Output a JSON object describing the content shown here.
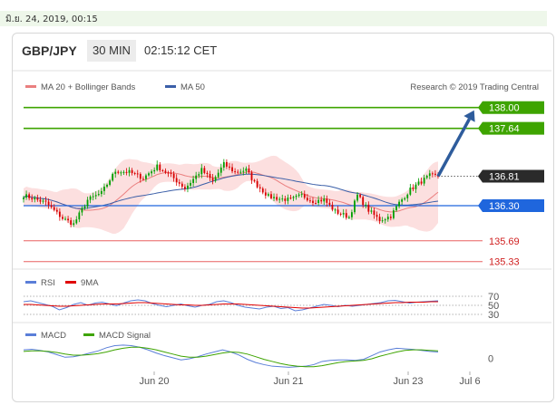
{
  "header": {
    "datetime": "มิ.ย. 24, 2019, 00:15",
    "symbol": "GBP/JPY",
    "timeframe": "30 MIN",
    "clock": "02:15:12 CET"
  },
  "legend": {
    "ma20": "MA 20 + Bollinger Bands",
    "ma50": "MA 50",
    "credit": "Research © 2019 Trading Central",
    "rsi": "RSI",
    "rsi_ma": "9MA",
    "macd": "MACD",
    "macd_signal": "MACD Signal"
  },
  "colors": {
    "candle_up": "#00a000",
    "candle_down": "#d80000",
    "bollinger_fill": "#fbd4d4",
    "ma20": "#ea7f7f",
    "ma50": "#3b5fa8",
    "target_green": "#3ea400",
    "pivot_blue": "#1f66dd",
    "support_red": "#e86060",
    "arrow": "#2e5c9c"
  },
  "chart_data": [
    {
      "type": "candlestick",
      "title": "GBP/JPY",
      "ylim": [
        135.2,
        138.2
      ],
      "x_ticks": [
        "Jun 20",
        "Jun 21",
        "Jun 23",
        "Jul 6"
      ],
      "candle_count": 150,
      "close_path": [
        [
          0,
          136.48
        ],
        [
          8,
          136.35
        ],
        [
          14,
          136.08
        ],
        [
          18,
          135.98
        ],
        [
          23,
          136.4
        ],
        [
          28,
          136.52
        ],
        [
          33,
          136.9
        ],
        [
          38,
          136.88
        ],
        [
          43,
          136.78
        ],
        [
          48,
          136.98
        ],
        [
          53,
          136.82
        ],
        [
          58,
          136.6
        ],
        [
          64,
          136.92
        ],
        [
          68,
          136.72
        ],
        [
          72,
          137.02
        ],
        [
          76,
          136.88
        ],
        [
          80,
          136.92
        ],
        [
          83,
          136.7
        ],
        [
          88,
          136.46
        ],
        [
          92,
          136.42
        ],
        [
          96,
          136.4
        ],
        [
          100,
          136.48
        ],
        [
          104,
          136.38
        ],
        [
          108,
          136.4
        ],
        [
          112,
          136.2
        ],
        [
          117,
          136.1
        ],
        [
          120,
          136.48
        ],
        [
          124,
          136.22
        ],
        [
          128,
          136.05
        ],
        [
          132,
          136.12
        ],
        [
          135,
          136.35
        ],
        [
          139,
          136.58
        ],
        [
          143,
          136.72
        ],
        [
          146,
          136.82
        ],
        [
          149,
          136.81
        ]
      ],
      "series": [
        {
          "name": "MA 20 + Bollinger Bands"
        },
        {
          "name": "MA 50"
        }
      ],
      "levels": [
        {
          "value": 138.0,
          "label": "138.00",
          "kind": "target"
        },
        {
          "value": 137.64,
          "label": "137.64",
          "kind": "target"
        },
        {
          "value": 136.81,
          "label": "136.81",
          "kind": "last"
        },
        {
          "value": 136.3,
          "label": "136.30",
          "kind": "pivot"
        },
        {
          "value": 135.69,
          "label": "135.69",
          "kind": "support"
        },
        {
          "value": 135.33,
          "label": "135.33",
          "kind": "support"
        }
      ],
      "projection": {
        "from": [
          149,
          136.81
        ],
        "to": [
          160,
          138.0
        ]
      }
    },
    {
      "type": "line",
      "title": "",
      "ylim": [
        20,
        80
      ],
      "y_ticks": [
        "70",
        "50",
        "30"
      ],
      "y_tick_values": [
        70,
        50,
        30
      ],
      "series": [
        {
          "name": "RSI",
          "values": [
            58,
            60,
            56,
            52,
            48,
            40,
            45,
            52,
            56,
            50,
            55,
            57,
            53,
            49,
            55,
            60,
            62,
            60,
            54,
            50,
            47,
            50,
            53,
            49,
            46,
            50,
            52,
            58,
            60,
            56,
            50,
            46,
            44,
            42,
            46,
            48,
            43,
            45,
            38,
            40,
            44,
            48,
            52,
            50,
            47,
            50,
            48,
            50,
            52,
            54,
            56,
            60,
            61,
            58,
            55,
            57,
            58,
            59,
            60
          ]
        },
        {
          "name": "9MA",
          "values": [
            52,
            52,
            51,
            50,
            49,
            48,
            48,
            49,
            50,
            51,
            52,
            53,
            53,
            53,
            54,
            55,
            56,
            56,
            55,
            54,
            53,
            52,
            51,
            51,
            50,
            50,
            51,
            52,
            53,
            53,
            53,
            52,
            51,
            50,
            49,
            48,
            47,
            46,
            45,
            44,
            44,
            45,
            46,
            47,
            48,
            49,
            50,
            51,
            52,
            53,
            54,
            55,
            56,
            56,
            57,
            57,
            57,
            58,
            58
          ]
        }
      ]
    },
    {
      "type": "line",
      "title": "",
      "y_ticks": [
        "0"
      ],
      "y_tick_values": [
        0
      ],
      "series": [
        {
          "name": "MACD",
          "values": [
            0.16,
            0.17,
            0.15,
            0.12,
            0.07,
            0.02,
            0.03,
            0.06,
            0.1,
            0.14,
            0.2,
            0.24,
            0.25,
            0.24,
            0.21,
            0.16,
            0.1,
            0.05,
            0.01,
            -0.03,
            -0.01,
            0.03,
            0.08,
            0.12,
            0.16,
            0.12,
            0.06,
            -0.02,
            -0.08,
            -0.12,
            -0.15,
            -0.16,
            -0.17,
            -0.16,
            -0.15,
            -0.12,
            -0.06,
            -0.04,
            -0.03,
            -0.03,
            -0.04,
            -0.02,
            0.05,
            0.12,
            0.16,
            0.19,
            0.18,
            0.17,
            0.15,
            0.13,
            0.12
          ]
        },
        {
          "name": "MACD Signal",
          "values": [
            0.13,
            0.14,
            0.14,
            0.13,
            0.11,
            0.08,
            0.06,
            0.06,
            0.07,
            0.09,
            0.12,
            0.16,
            0.19,
            0.21,
            0.21,
            0.19,
            0.16,
            0.12,
            0.08,
            0.04,
            0.02,
            0.02,
            0.04,
            0.07,
            0.1,
            0.12,
            0.11,
            0.08,
            0.03,
            -0.02,
            -0.06,
            -0.1,
            -0.13,
            -0.15,
            -0.16,
            -0.16,
            -0.14,
            -0.11,
            -0.08,
            -0.06,
            -0.05,
            -0.04,
            -0.01,
            0.04,
            0.08,
            0.12,
            0.15,
            0.16,
            0.16,
            0.15,
            0.14
          ]
        }
      ]
    }
  ]
}
